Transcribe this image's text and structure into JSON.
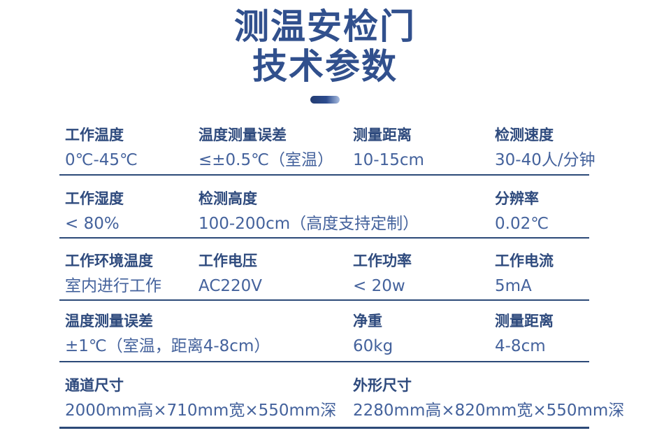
{
  "header": {
    "title_line1": "测温安检门",
    "title_line2": "技术参数"
  },
  "colors": {
    "title": "#31508d",
    "label": "#2e4a7d",
    "value": "#44629c",
    "divider_line": "#2c4a78",
    "dash_gradient_start": "#233c72",
    "dash_gradient_end": "#a9bde0"
  },
  "table": {
    "rows": [
      {
        "cells": [
          {
            "label": "工作温度",
            "value": "0℃-45℃"
          },
          {
            "label": "温度测量误差",
            "value": "≤±0.5℃（室温）"
          },
          {
            "label": "测量距离",
            "value": "10-15cm"
          },
          {
            "label": "检测速度",
            "value": "30-40人/分钟"
          }
        ]
      },
      {
        "cells": [
          {
            "label": "工作湿度",
            "value": "< 80%"
          },
          {
            "label": "检测高度",
            "value": "100-200cm（高度支持定制）"
          },
          {
            "label": "分辨率",
            "value": "0.02℃"
          }
        ]
      },
      {
        "cells": [
          {
            "label": "工作环境温度",
            "value": "室内进行工作"
          },
          {
            "label": "工作电压",
            "value": "AC220V"
          },
          {
            "label": "工作功率",
            "value": "< 20w"
          },
          {
            "label": "工作电流",
            "value": "5mA"
          }
        ]
      },
      {
        "cells": [
          {
            "label": "温度测量误差",
            "value": "±1℃（室温，距离4-8cm）"
          },
          {
            "label": "净重",
            "value": "60kg"
          },
          {
            "label": "测量距离",
            "value": "4-8cm"
          }
        ]
      },
      {
        "cells": [
          {
            "label": "通道尺寸",
            "value": "2000mm高×710mm宽×550mm深"
          },
          {
            "label": "外形尺寸",
            "value": "2280mm高×820mm宽×550mm深"
          }
        ]
      }
    ]
  }
}
